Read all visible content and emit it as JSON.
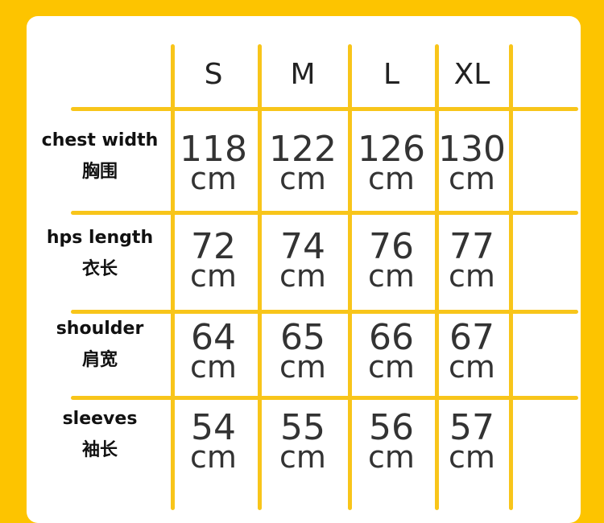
{
  "sizes": [
    "S",
    "M",
    "L",
    "XL"
  ],
  "rows": [
    {
      "label": "chest width",
      "label_zh": "胸围",
      "values": [
        "118",
        "122",
        "126",
        "130"
      ]
    },
    {
      "label": "hps length",
      "label_zh": "衣长",
      "values": [
        "72",
        "74",
        "76",
        "77"
      ]
    },
    {
      "label": "shoulder",
      "label_zh": "肩宽",
      "values": [
        "64",
        "65",
        "66",
        "67"
      ]
    },
    {
      "label": "sleeves",
      "label_zh": "袖长",
      "values": [
        "54",
        "55",
        "56",
        "57"
      ]
    }
  ],
  "unit": "cm",
  "colors": {
    "background": "#FDC400",
    "grid": "#F8C51A",
    "card": "#FFFFFF"
  }
}
